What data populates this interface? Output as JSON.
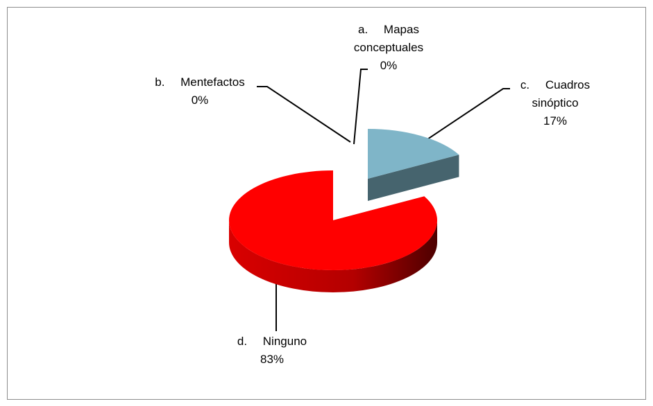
{
  "chart_data": {
    "type": "pie",
    "categories": [
      "a. Mapas conceptuales",
      "b. Mentefactos",
      "c. Cuadros sinóptico",
      "d. Ninguno"
    ],
    "values": [
      0,
      0,
      17,
      83
    ],
    "value_labels": [
      "0%",
      "0%",
      "17%",
      "83%"
    ],
    "colors": [
      "#4f81bd",
      "#9bbb59",
      "#7fb5c8",
      "#ff0000"
    ]
  }
}
